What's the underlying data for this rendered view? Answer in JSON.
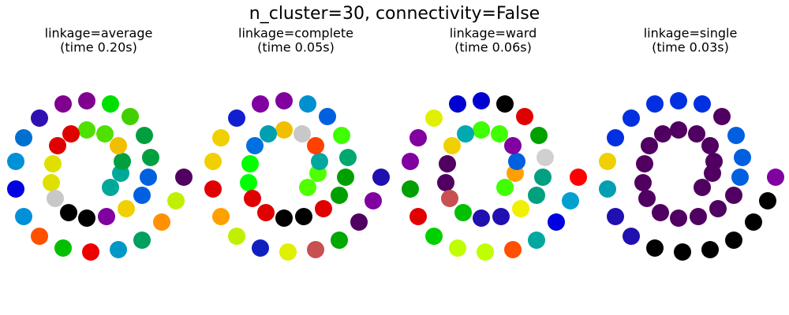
{
  "title": "n_cluster=30, connectivity=False",
  "chart_data": [
    {
      "type": "scatter",
      "title": "linkage=average",
      "subtitle": "(time 0.20s)",
      "x": [
        15,
        28,
        30,
        25,
        8,
        -15,
        -35,
        -52,
        -58,
        -60,
        -55,
        -38,
        -15,
        10,
        35,
        55,
        63,
        66,
        58,
        40,
        15,
        -15,
        -45,
        -75,
        -95,
        -105,
        -105,
        -95,
        -75,
        -45,
        -10,
        25,
        55,
        80,
        98,
        108
      ],
      "y": [
        -18,
        0,
        15,
        35,
        50,
        55,
        50,
        35,
        12,
        -12,
        -32,
        -50,
        -57,
        -55,
        -45,
        -28,
        -5,
        20,
        48,
        72,
        88,
        92,
        88,
        70,
        45,
        15,
        -20,
        -55,
        -80,
        -95,
        -100,
        -97,
        -85,
        -62,
        -35,
        -5
      ],
      "colors": [
        "#00a89a",
        "#00a89a",
        "#00a040",
        "#f0c000",
        "#50e000",
        "#50e000",
        "#e00000",
        "#e00000",
        "#e0e000",
        "#e0e000",
        "#c8c8c8",
        "#000000",
        "#000000",
        "#8000a0",
        "#f0d000",
        "#0060e0",
        "#0060e0",
        "#00a040",
        "#00a040",
        "#40d000",
        "#00e000",
        "#800090",
        "#800090",
        "#3010b0",
        "#0070d0",
        "#0090d8",
        "#0000e0",
        "#0090d8",
        "#ff5000",
        "#00c000",
        "#ee0000",
        "#0098c8",
        "#00a060",
        "#ff9000",
        "#c0f000",
        "#500060"
      ],
      "xlim": [
        -125,
        125
      ],
      "ylim": [
        -120,
        120
      ]
    },
    {
      "type": "scatter",
      "title": "linkage=complete",
      "subtitle": "(time 0.05s)",
      "x": [
        15,
        28,
        30,
        25,
        8,
        -15,
        -35,
        -52,
        -58,
        -60,
        -55,
        -38,
        -15,
        10,
        35,
        55,
        63,
        66,
        58,
        40,
        15,
        -15,
        -45,
        -75,
        -95,
        -105,
        -105,
        -95,
        -75,
        -45,
        -10,
        25,
        55,
        80,
        98,
        108
      ],
      "y": [
        -18,
        0,
        15,
        35,
        50,
        55,
        50,
        35,
        12,
        -12,
        -32,
        -50,
        -57,
        -55,
        -45,
        -28,
        -5,
        20,
        48,
        72,
        88,
        92,
        88,
        70,
        45,
        15,
        -20,
        -55,
        -80,
        -95,
        -100,
        -97,
        -85,
        -62,
        -35,
        -5
      ],
      "colors": [
        "#50ff00",
        "#50ff00",
        "#00a8a0",
        "#ff4000",
        "#c8c8c8",
        "#f0c000",
        "#00a0b0",
        "#0070e0",
        "#00ff00",
        "#00ff00",
        "#e00000",
        "#e00000",
        "#000000",
        "#000000",
        "#e00000",
        "#00a000",
        "#00a000",
        "#00a870",
        "#40ff00",
        "#0060e0",
        "#0090d0",
        "#8000a0",
        "#8000a0",
        "#1020d0",
        "#f0d000",
        "#f0d000",
        "#e00000",
        "#ffa000",
        "#c0f000",
        "#1020c0",
        "#e0f000",
        "#c85050",
        "#00a800",
        "#500060",
        "#8000a0",
        "#2010b0"
      ],
      "xlim": [
        -125,
        125
      ],
      "ylim": [
        -120,
        120
      ]
    },
    {
      "type": "scatter",
      "title": "linkage=ward",
      "subtitle": "(time 0.06s)",
      "x": [
        15,
        28,
        30,
        25,
        8,
        -15,
        -35,
        -52,
        -58,
        -60,
        -55,
        -38,
        -15,
        10,
        35,
        55,
        63,
        66,
        58,
        40,
        15,
        -15,
        -45,
        -75,
        -95,
        -105,
        -105,
        -95,
        -75,
        -45,
        -10,
        25,
        55,
        80,
        98,
        108
      ],
      "y": [
        -18,
        0,
        15,
        35,
        50,
        55,
        50,
        35,
        12,
        -12,
        -32,
        -50,
        -57,
        -55,
        -45,
        -28,
        -5,
        20,
        48,
        72,
        88,
        92,
        88,
        70,
        45,
        15,
        -20,
        -55,
        -80,
        -95,
        -100,
        -97,
        -85,
        -62,
        -35,
        -5
      ],
      "colors": [
        "#40ff00",
        "#ffa000",
        "#0060e0",
        "#8000a0",
        "#40ff00",
        "#40ff00",
        "#00a8b0",
        "#f0d000",
        "#500060",
        "#500060",
        "#c85050",
        "#00c000",
        "#2010b0",
        "#2010b0",
        "#f0f000",
        "#00a080",
        "#00a080",
        "#d0d0d0",
        "#00a000",
        "#e00000",
        "#000000",
        "#0000d0",
        "#0000d0",
        "#e0f000",
        "#8000a0",
        "#8000a0",
        "#00a000",
        "#e00000",
        "#00d000",
        "#c0ff00",
        "#c0ff00",
        "#ff5000",
        "#00a8a0",
        "#0000e0",
        "#00a0d0",
        "#ff0000"
      ],
      "xlim": [
        -125,
        125
      ],
      "ylim": [
        -120,
        120
      ]
    },
    {
      "type": "scatter",
      "title": "linkage=single",
      "subtitle": "(time 0.03s)",
      "x": [
        15,
        28,
        30,
        25,
        8,
        -15,
        -35,
        -52,
        -58,
        -60,
        -55,
        -38,
        -15,
        10,
        35,
        55,
        63,
        66,
        58,
        40,
        15,
        -15,
        -45,
        -75,
        -95,
        -105,
        -105,
        -95,
        -75,
        -45,
        -10,
        25,
        55,
        80,
        98,
        108
      ],
      "y": [
        -18,
        0,
        15,
        35,
        50,
        55,
        50,
        35,
        12,
        -12,
        -32,
        -50,
        -57,
        -55,
        -45,
        -28,
        -5,
        20,
        48,
        72,
        88,
        92,
        88,
        70,
        45,
        15,
        -20,
        -55,
        -80,
        -95,
        -100,
        -97,
        -85,
        -62,
        -35,
        -5
      ],
      "colors": [
        "#500060",
        "#500060",
        "#500060",
        "#500060",
        "#500060",
        "#500060",
        "#500060",
        "#500060",
        "#500060",
        "#500060",
        "#500060",
        "#500060",
        "#500060",
        "#500060",
        "#500060",
        "#500060",
        "#0060e0",
        "#0060e0",
        "#0060e0",
        "#500060",
        "#0030e0",
        "#0030e0",
        "#0030e0",
        "#0030e0",
        "#0030e0",
        "#f0d000",
        "#00a0b0",
        "#2010b0",
        "#2010b0",
        "#000000",
        "#000000",
        "#000000",
        "#000000",
        "#000000",
        "#000000",
        "#8000a0"
      ],
      "xlim": [
        -125,
        125
      ],
      "ylim": [
        -120,
        120
      ]
    }
  ]
}
